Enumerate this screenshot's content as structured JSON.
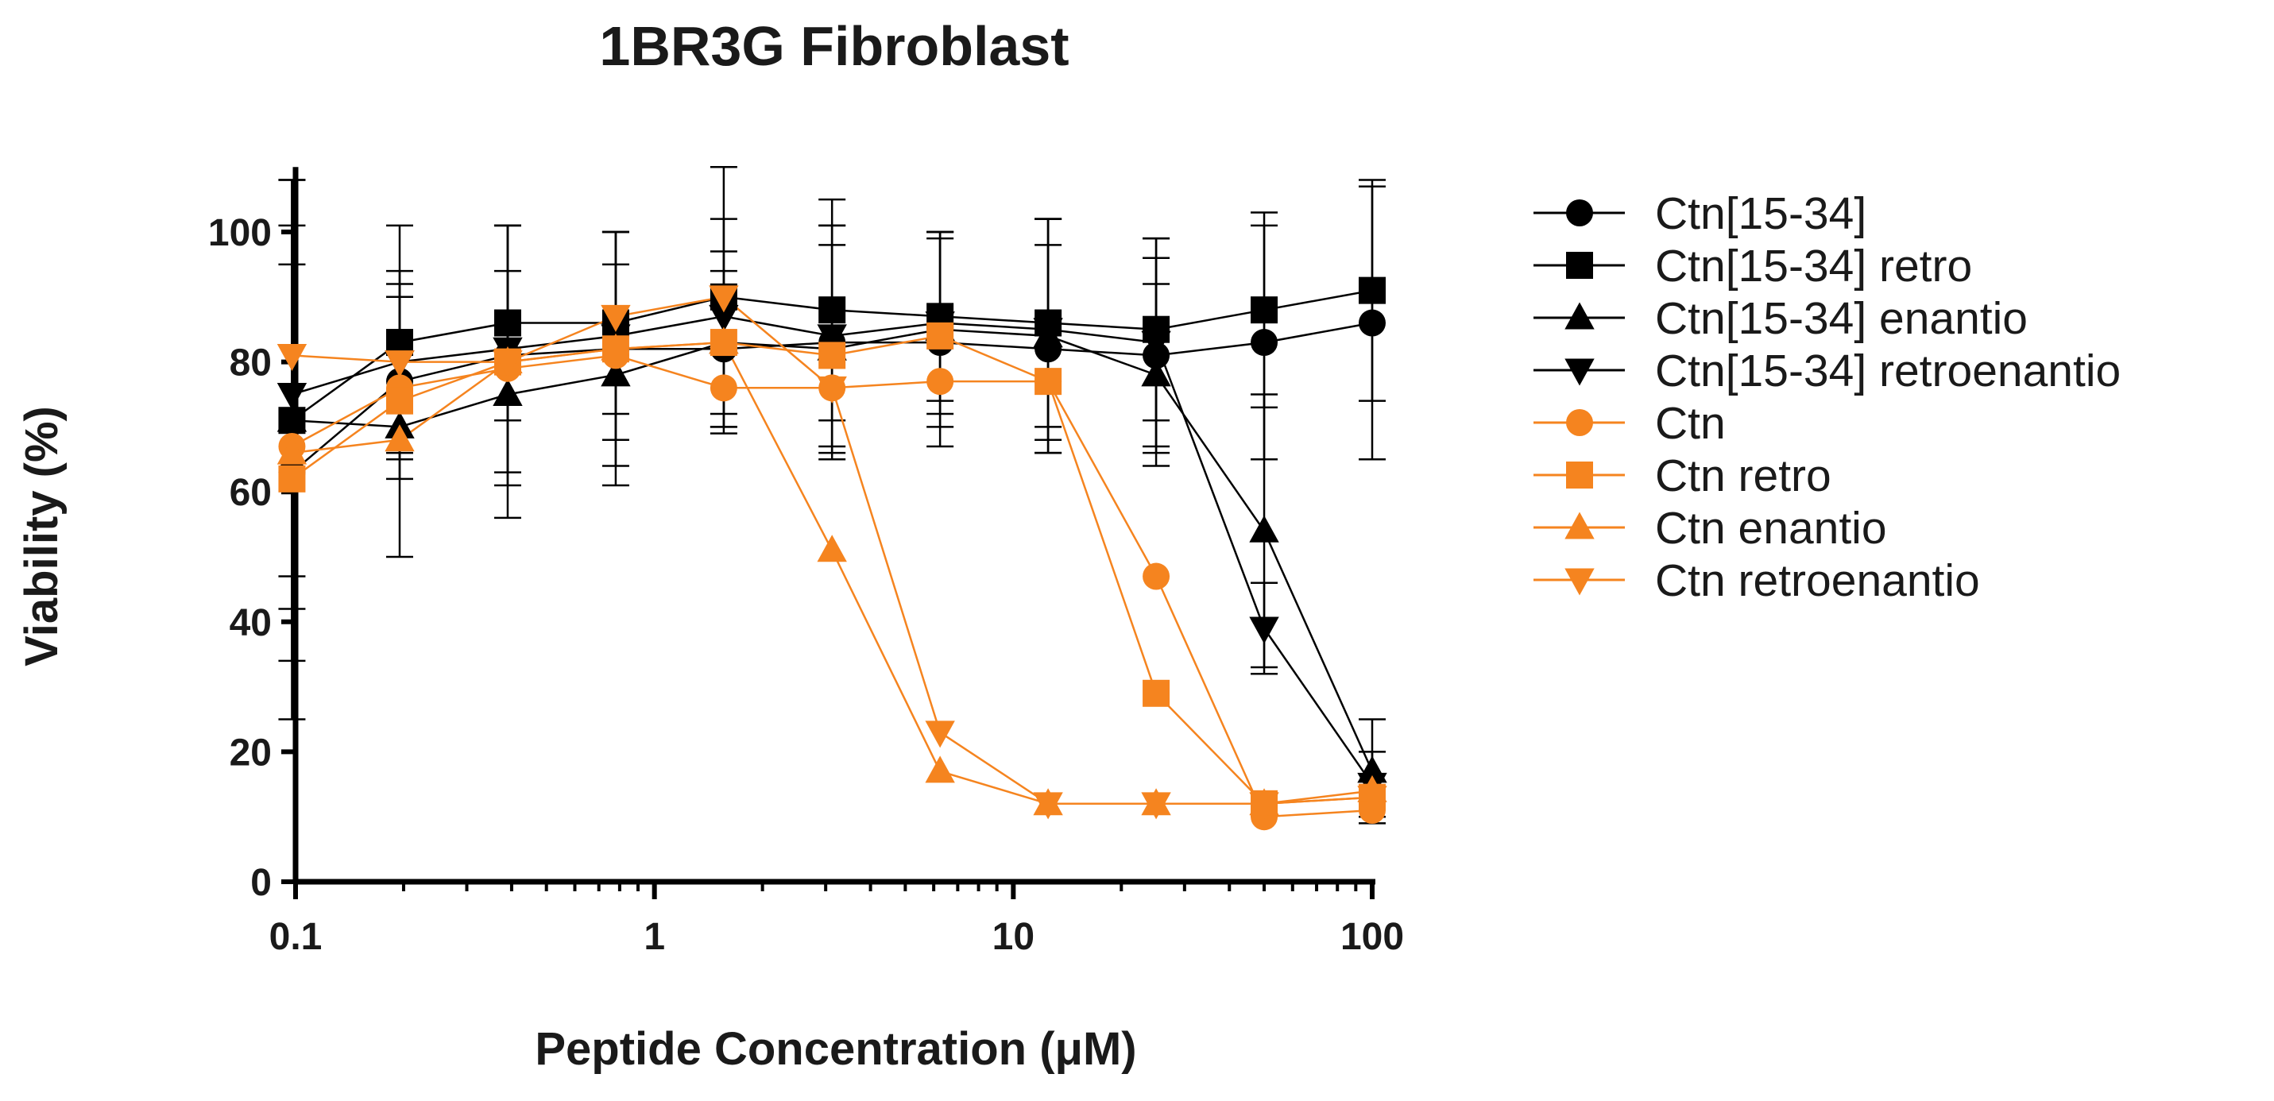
{
  "chart_data": {
    "type": "line",
    "title": "1BR3G Fibroblast",
    "xlabel": "Peptide Concentration (μM)",
    "ylabel": "Viability (%)",
    "xscale": "log",
    "xlim": [
      0.09,
      130
    ],
    "ylim": [
      0,
      110
    ],
    "x_ticks": [
      0.1,
      1,
      10,
      100
    ],
    "x_tick_labels": [
      "0.1",
      "1",
      "10",
      "100"
    ],
    "y_ticks": [
      0,
      20,
      40,
      60,
      80,
      100
    ],
    "y_tick_labels": [
      "0",
      "20",
      "40",
      "60",
      "80",
      "100"
    ],
    "legend_position": "right",
    "x": [
      0.0977,
      0.195,
      0.39,
      0.78,
      1.56,
      3.125,
      6.25,
      12.5,
      25,
      50,
      100
    ],
    "series": [
      {
        "name": "Ctn[15-34]",
        "color": "#000000",
        "marker": "circle",
        "values": [
          63,
          77,
          81,
          82,
          82,
          83,
          83,
          82,
          81,
          83,
          86
        ],
        "errors": [
          38,
          15,
          20,
          18,
          12,
          18,
          16,
          16,
          15,
          18,
          21
        ]
      },
      {
        "name": "Ctn[15-34] retro",
        "color": "#000000",
        "marker": "square",
        "values": [
          71,
          83,
          86,
          86,
          90,
          88,
          87,
          86,
          85,
          88,
          91
        ],
        "errors": [
          37,
          18,
          15,
          14,
          20,
          17,
          13,
          16,
          14,
          15,
          17
        ]
      },
      {
        "name": "Ctn[15-34] enantio",
        "color": "#000000",
        "marker": "triangle-up",
        "values": [
          71,
          70,
          75,
          78,
          83,
          82,
          85,
          84,
          78,
          54,
          17
        ],
        "errors": [
          24,
          20,
          19,
          17,
          14,
          16,
          15,
          18,
          14,
          21,
          8
        ]
      },
      {
        "name": "Ctn[15-34] retroenantio",
        "color": "#000000",
        "marker": "triangle-down",
        "values": [
          75,
          80,
          82,
          84,
          87,
          84,
          86,
          85,
          83,
          39,
          15
        ],
        "errors": [
          33,
          14,
          19,
          16,
          15,
          17,
          14,
          17,
          16,
          7,
          5
        ]
      },
      {
        "name": "Ctn",
        "color": "#f5841f",
        "marker": "circle",
        "values": [
          67,
          76,
          79,
          81,
          76,
          76,
          77,
          77,
          47,
          10,
          11
        ],
        "errors": [
          0,
          0,
          0,
          0,
          0,
          0,
          0,
          0,
          0,
          0,
          0
        ]
      },
      {
        "name": "Ctn retro",
        "color": "#f5841f",
        "marker": "square",
        "values": [
          62,
          74,
          80,
          82,
          83,
          81,
          84,
          77,
          29,
          12,
          13
        ],
        "errors": [
          0,
          0,
          0,
          0,
          0,
          0,
          0,
          0,
          0,
          0,
          0
        ]
      },
      {
        "name": "Ctn enantio",
        "color": "#f5841f",
        "marker": "triangle-up",
        "values": [
          66,
          68,
          80,
          82,
          83,
          51,
          17,
          12,
          12,
          12,
          14
        ],
        "errors": [
          0,
          0,
          0,
          0,
          0,
          0,
          0,
          0,
          0,
          0,
          0
        ]
      },
      {
        "name": "Ctn retroenantio",
        "color": "#f5841f",
        "marker": "triangle-down",
        "values": [
          81,
          80,
          80,
          87,
          90,
          76,
          23,
          12,
          12,
          12,
          13
        ],
        "errors": [
          0,
          0,
          0,
          0,
          0,
          0,
          0,
          0,
          0,
          0,
          0
        ]
      }
    ]
  }
}
